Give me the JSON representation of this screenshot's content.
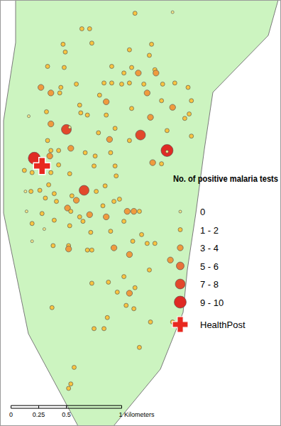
{
  "chart_data": {
    "type": "scatter",
    "legend_title": "No. of positive malaria tests",
    "legend": "bottom right",
    "tick_labels": false,
    "grid": false,
    "xlim": [
      0,
      2.54
    ],
    "ylim": [
      0,
      3.85
    ],
    "classes": [
      {
        "label": "0",
        "color": "#f6e98c"
      },
      {
        "label": "1 - 2",
        "color": "#f8c441"
      },
      {
        "label": "3 - 4",
        "color": "#ef9b3e"
      },
      {
        "label": "5 - 6",
        "color": "#e8713a"
      },
      {
        "label": "7 - 8",
        "color": "#e2482c"
      },
      {
        "label": "9 - 10",
        "color": "#df2a24"
      }
    ],
    "x": [
      1.22,
      1.56,
      0.74,
      0.81,
      0.57,
      0.59,
      0.83,
      1.17,
      1.37,
      1.01,
      1.35,
      0.43,
      0.58,
      1.19,
      1.4,
      1.25,
      1.41,
      1.12,
      1.58,
      0.69,
      0.94,
      1.01,
      1.1,
      1.17,
      1.3,
      1.47,
      1.7,
      0.55,
      0.37,
      0.46,
      1.33,
      0.9,
      0.54,
      0.96,
      1.46,
      1.56,
      1.73,
      0.72,
      1.19,
      0.42,
      0.73,
      1.36,
      0.46,
      0.96,
      0.26,
      0.79,
      1.67,
      1.71,
      0.6,
      0.63,
      1.04,
      1.27,
      1.51,
      1.73,
      0.89,
      1.17,
      0.99,
      0.64,
      0.43,
      0.53,
      0.46,
      1.51,
      1.51,
      1.38,
      1.46,
      0.31,
      0.45,
      0.77,
      0.86,
      1.0,
      0.29,
      0.22,
      0.53,
      1.04,
      0.85,
      0.63,
      1.05,
      0.76,
      0.46,
      0.23,
      0.28,
      0.36,
      0.44,
      0.41,
      0.49,
      0.51,
      0.65,
      0.69,
      0.61,
      0.64,
      1.03,
      0.87,
      0.95,
      0.93,
      1.08,
      0.96,
      0.24,
      0.29,
      0.38,
      0.49,
      0.72,
      0.81,
      1.15,
      1.21,
      1.26,
      1.12,
      1.28,
      0.4,
      0.63,
      1.0,
      0.75,
      0.62,
      0.62,
      0.79,
      0.83,
      1.03,
      1.2,
      1.33,
      1.4,
      0.48,
      0.82,
      0.29,
      1.17,
      1.35,
      1.54,
      0.83,
      0.98,
      1.12,
      1.22,
      1.06,
      1.17,
      1.14,
      1.21,
      0.97,
      0.85,
      0.94,
      0.47,
      1.36,
      1.56,
      1.26,
      0.67,
      0.64,
      0.62
    ],
    "y": [
      3.73,
      3.74,
      3.59,
      3.59,
      3.45,
      3.38,
      3.46,
      3.4,
      3.45,
      3.25,
      3.35,
      3.25,
      3.24,
      3.24,
      3.22,
      3.19,
      3.19,
      3.19,
      3.1,
      3.09,
      3.1,
      3.1,
      3.09,
      3.1,
      3.09,
      3.09,
      3.06,
      3.06,
      3.06,
      3.01,
      3.01,
      2.99,
      3.01,
      2.93,
      2.94,
      2.88,
      2.94,
      2.9,
      2.87,
      2.84,
      2.83,
      2.79,
      2.73,
      2.81,
      2.8,
      2.81,
      2.78,
      2.82,
      2.68,
      2.7,
      2.69,
      2.63,
      2.67,
      2.62,
      2.65,
      2.58,
      2.59,
      2.51,
      2.58,
      2.49,
      2.49,
      2.49,
      2.48,
      2.38,
      2.37,
      2.42,
      2.44,
      2.47,
      2.44,
      2.47,
      2.29,
      2.31,
      2.36,
      2.35,
      2.35,
      2.28,
      2.26,
      2.13,
      2.29,
      2.12,
      2.12,
      2.13,
      2.18,
      2.06,
      2.1,
      2.03,
      2.08,
      2.04,
      1.97,
      1.94,
      2.03,
      2.12,
      2.17,
      1.99,
      2.05,
      1.89,
      1.94,
      1.83,
      1.92,
      1.86,
      1.89,
      1.91,
      1.94,
      1.94,
      1.94,
      1.85,
      1.73,
      1.78,
      1.81,
      1.76,
      1.85,
      1.63,
      1.6,
      1.59,
      1.59,
      1.61,
      1.67,
      1.65,
      1.65,
      1.63,
      1.75,
      1.67,
      1.55,
      1.41,
      1.5,
      1.29,
      1.3,
      1.35,
      1.25,
      1.21,
      1.2,
      1.09,
      1.06,
      0.98,
      0.88,
      0.88,
      1.07,
      0.94,
      0.94,
      0.71,
      0.53,
      0.38,
      0.34
    ],
    "class": [
      1,
      0,
      1,
      1,
      1,
      1,
      1,
      1,
      1,
      1,
      1,
      1,
      1,
      1,
      1,
      2,
      2,
      1,
      1,
      1,
      1,
      1,
      1,
      1,
      1,
      1,
      1,
      1,
      2,
      2,
      2,
      1,
      1,
      2,
      1,
      2,
      1,
      1,
      1,
      1,
      1,
      2,
      2,
      1,
      0,
      1,
      1,
      1,
      4,
      0,
      1,
      4,
      1,
      1,
      1,
      1,
      2,
      2,
      1,
      1,
      1,
      5,
      0,
      2,
      1,
      5,
      2,
      1,
      1,
      1,
      1,
      1,
      1,
      1,
      1,
      1,
      1,
      4,
      1,
      0,
      1,
      1,
      1,
      1,
      1,
      1,
      1,
      2,
      2,
      1,
      1,
      1,
      1,
      1,
      1,
      2,
      0,
      1,
      1,
      1,
      1,
      2,
      2,
      2,
      1,
      1,
      1,
      0,
      1,
      1,
      1,
      1,
      2,
      1,
      1,
      2,
      1,
      1,
      1,
      1,
      1,
      0,
      2,
      1,
      2,
      1,
      1,
      1,
      1,
      1,
      2,
      1,
      1,
      1,
      1,
      1,
      1,
      1,
      1,
      1,
      1,
      1,
      1
    ],
    "health_post": {
      "label": "HealthPost",
      "x": 0.38,
      "y": 2.35,
      "color": "#e8281f"
    },
    "scale_bar": {
      "ticks": [
        0,
        0.25,
        0.5,
        {
          "value": 1,
          "label": "1 Kilometers"
        }
      ]
    }
  }
}
